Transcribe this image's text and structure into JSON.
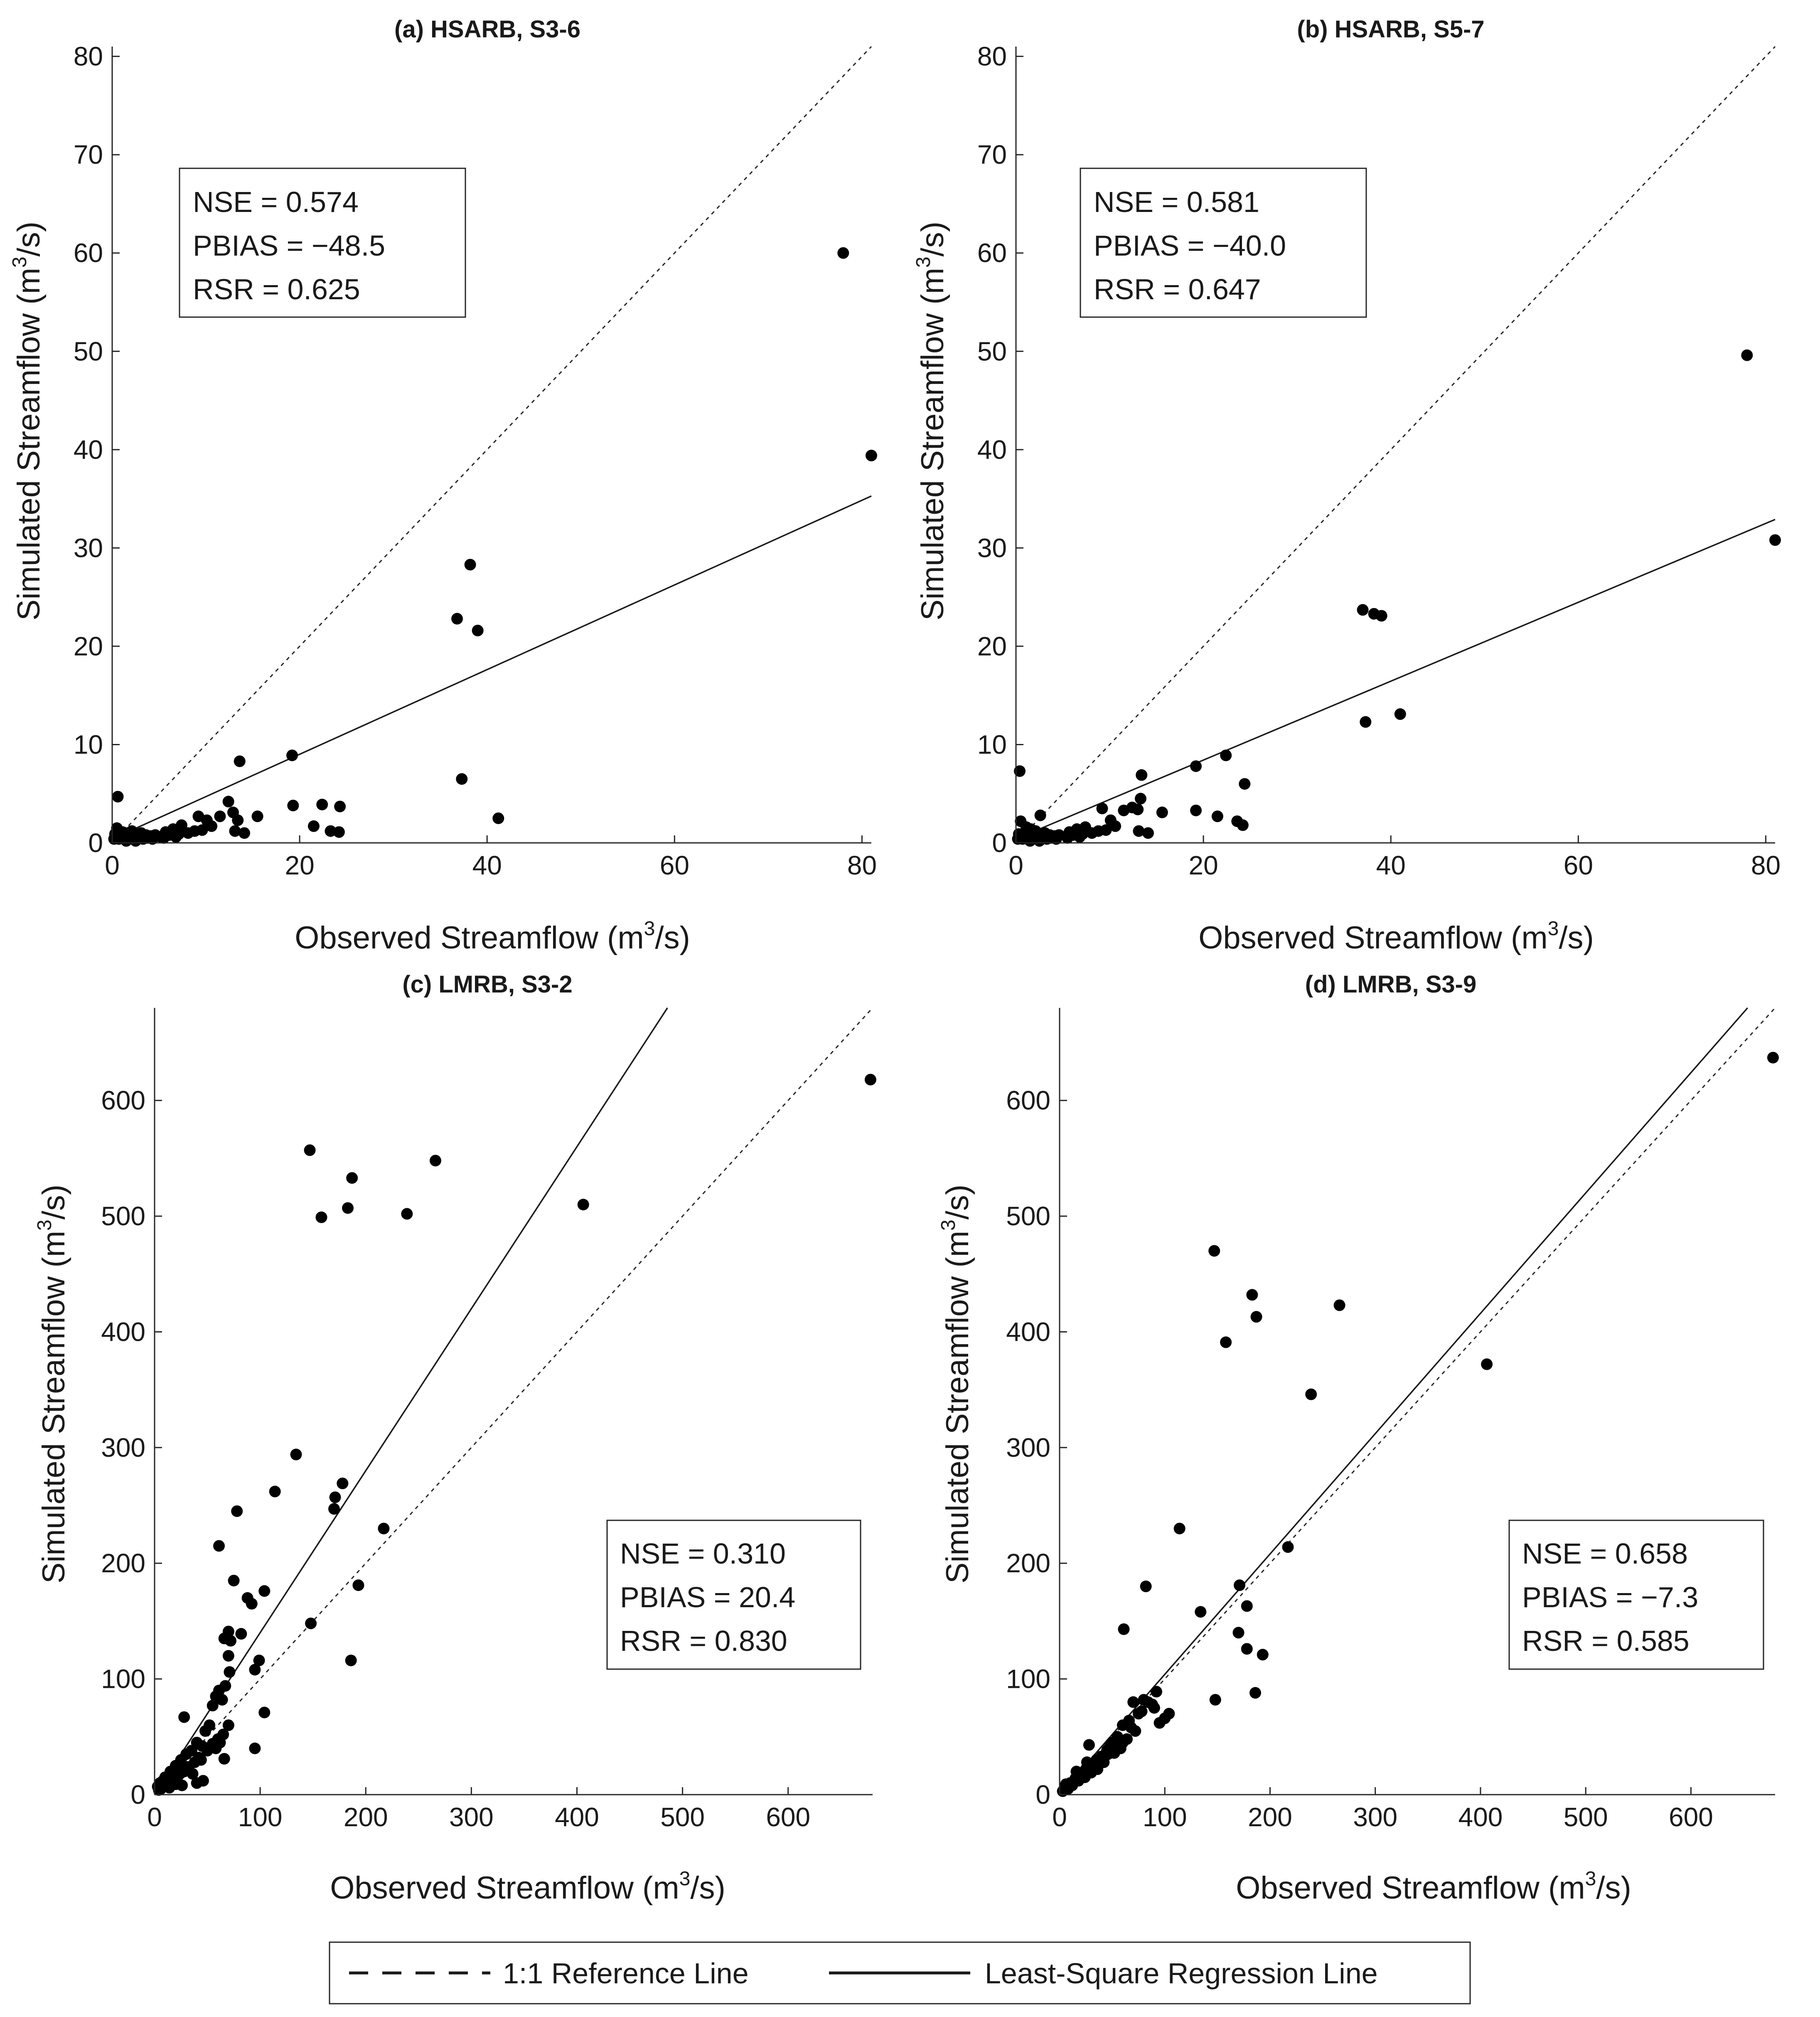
{
  "chart_data": [
    {
      "type": "scatter",
      "title": "(a) HSARB, S3-6",
      "xlabel": "Observed Streamflow (m",
      "ylabel": "Simulated Streamflow (m",
      "unit_exponent": "3",
      "unit_suffix": "/s)",
      "xlim": [
        0,
        81
      ],
      "ylim": [
        0,
        81
      ],
      "xticks": [
        0,
        20,
        40,
        60,
        80
      ],
      "yticks": [
        0,
        10,
        20,
        30,
        40,
        50,
        60,
        70,
        80
      ],
      "stats": {
        "nse": "NSE = 0.574",
        "pbias": "PBIAS = −48.5",
        "rsr": "RSR = 0.625"
      },
      "stats_position": "top-left",
      "reference_line": {
        "slope": 1,
        "intercept": 0
      },
      "regression_line": {
        "slope": 0.4306,
        "intercept": 0.4
      },
      "points": [
        [
          78,
          60
        ],
        [
          81,
          39.4
        ],
        [
          38.2,
          28.3
        ],
        [
          36.8,
          22.8
        ],
        [
          39,
          21.6
        ],
        [
          37.3,
          6.5
        ],
        [
          41.2,
          2.5
        ],
        [
          13.6,
          8.3
        ],
        [
          19.2,
          8.9
        ],
        [
          19.3,
          3.8
        ],
        [
          22.4,
          3.9
        ],
        [
          24.3,
          3.7
        ],
        [
          21.5,
          1.7
        ],
        [
          23.3,
          1.2
        ],
        [
          24.2,
          1.1
        ],
        [
          12.4,
          4.2
        ],
        [
          12.9,
          3.1
        ],
        [
          13.4,
          2.3
        ],
        [
          15.5,
          2.7
        ],
        [
          11.5,
          2.7
        ],
        [
          10.1,
          2.3
        ],
        [
          9.2,
          2.7
        ],
        [
          8.8,
          1.2
        ],
        [
          13.1,
          1.2
        ],
        [
          14.1,
          1
        ],
        [
          7.4,
          1.8
        ],
        [
          6.5,
          1.4
        ],
        [
          5.7,
          1.1
        ],
        [
          5.2,
          0.6
        ],
        [
          0.6,
          4.7
        ],
        [
          0.5,
          1.5
        ],
        [
          1.1,
          1.1
        ],
        [
          1.6,
          1
        ],
        [
          2.1,
          1.2
        ],
        [
          2.6,
          0.9
        ],
        [
          3.1,
          1
        ],
        [
          3.6,
          0.8
        ],
        [
          4.1,
          0.7
        ],
        [
          4.6,
          0.8
        ],
        [
          6.1,
          0.8
        ],
        [
          7.1,
          0.9
        ],
        [
          8.1,
          1
        ],
        [
          9.6,
          1.3
        ],
        [
          10.6,
          1.7
        ],
        [
          0.2,
          0.4
        ],
        [
          0.4,
          0.6
        ],
        [
          0.7,
          0.4
        ],
        [
          0.9,
          0.7
        ],
        [
          1.3,
          0.5
        ],
        [
          1.8,
          0.4
        ],
        [
          2.3,
          0.6
        ],
        [
          2.8,
          0.5
        ],
        [
          3.3,
          0.4
        ],
        [
          3.8,
          0.5
        ],
        [
          4.3,
          0.4
        ],
        [
          5.5,
          0.5
        ],
        [
          6.8,
          0.6
        ],
        [
          0.3,
          0.9
        ],
        [
          1.5,
          0.2
        ],
        [
          2.5,
          0.2
        ]
      ]
    },
    {
      "type": "scatter",
      "title": "(b) HSARB, S5-7",
      "xlabel": "Observed Streamflow (m",
      "ylabel": "Simulated Streamflow (m",
      "unit_exponent": "3",
      "unit_suffix": "/s)",
      "xlim": [
        0,
        81
      ],
      "ylim": [
        0,
        81
      ],
      "xticks": [
        0,
        20,
        40,
        60,
        80
      ],
      "yticks": [
        0,
        10,
        20,
        30,
        40,
        50,
        60,
        70,
        80
      ],
      "stats": {
        "nse": "NSE = 0.581",
        "pbias": "PBIAS = −40.0",
        "rsr": "RSR = 0.647"
      },
      "stats_position": "top-left",
      "reference_line": {
        "slope": 1,
        "intercept": 0
      },
      "regression_line": {
        "slope": 0.4012,
        "intercept": 0.4
      },
      "points": [
        [
          78,
          49.6
        ],
        [
          81,
          30.8
        ],
        [
          37,
          23.7
        ],
        [
          38.2,
          23.3
        ],
        [
          39,
          23.1
        ],
        [
          37.3,
          12.3
        ],
        [
          41,
          13.1
        ],
        [
          19.2,
          7.8
        ],
        [
          22.4,
          8.9
        ],
        [
          24.4,
          6
        ],
        [
          13.4,
          6.9
        ],
        [
          19.2,
          3.3
        ],
        [
          21.5,
          2.7
        ],
        [
          23.6,
          2.2
        ],
        [
          24.2,
          1.8
        ],
        [
          12.4,
          3.6
        ],
        [
          13.3,
          4.5
        ],
        [
          13,
          3.4
        ],
        [
          15.6,
          3.1
        ],
        [
          11.5,
          3.3
        ],
        [
          10.1,
          2.3
        ],
        [
          9.2,
          3.5
        ],
        [
          13.1,
          1.2
        ],
        [
          14.1,
          1
        ],
        [
          8.8,
          1.2
        ],
        [
          7.4,
          1.6
        ],
        [
          6.5,
          1.4
        ],
        [
          5.7,
          1.1
        ],
        [
          0.4,
          7.3
        ],
        [
          2.6,
          2.8
        ],
        [
          0.5,
          2.2
        ],
        [
          1.1,
          1.6
        ],
        [
          1.6,
          1.4
        ],
        [
          2.1,
          1.2
        ],
        [
          3.1,
          1
        ],
        [
          3.6,
          0.8
        ],
        [
          4.1,
          0.7
        ],
        [
          4.6,
          0.8
        ],
        [
          6.1,
          0.8
        ],
        [
          7.1,
          0.9
        ],
        [
          8.1,
          1
        ],
        [
          9.6,
          1.3
        ],
        [
          10.6,
          1.7
        ],
        [
          0.2,
          0.4
        ],
        [
          0.4,
          0.6
        ],
        [
          0.7,
          0.4
        ],
        [
          0.9,
          0.7
        ],
        [
          1.3,
          0.5
        ],
        [
          1.8,
          0.4
        ],
        [
          2.3,
          0.6
        ],
        [
          2.8,
          0.5
        ],
        [
          3.3,
          0.4
        ],
        [
          3.8,
          0.5
        ],
        [
          4.3,
          0.4
        ],
        [
          5.5,
          0.5
        ],
        [
          6.8,
          0.6
        ],
        [
          0.3,
          0.9
        ],
        [
          1.5,
          0.2
        ],
        [
          2.5,
          0.2
        ]
      ]
    },
    {
      "type": "scatter",
      "title": "(c) LMRB, S3-2",
      "xlabel": "Observed Streamflow (m",
      "ylabel": "Simulated Streamflow (m",
      "unit_exponent": "3",
      "unit_suffix": "/s)",
      "xlim": [
        0,
        680
      ],
      "ylim": [
        0,
        680
      ],
      "xticks": [
        0,
        100,
        200,
        300,
        400,
        500,
        600
      ],
      "yticks": [
        0,
        100,
        200,
        300,
        400,
        500,
        600
      ],
      "stats": {
        "nse": "NSE = 0.310",
        "pbias": "PBIAS = 20.4",
        "rsr": "RSR = 0.830"
      },
      "stats_position": "bottom-right",
      "reference_line": {
        "slope": 1,
        "intercept": 0
      },
      "regression_line": {
        "slope": 1.4,
        "intercept": 0
      },
      "points": [
        [
          678,
          618
        ],
        [
          406,
          510
        ],
        [
          147,
          557
        ],
        [
          266,
          548
        ],
        [
          187,
          533
        ],
        [
          183,
          507
        ],
        [
          158,
          499
        ],
        [
          239,
          502
        ],
        [
          134,
          294
        ],
        [
          178,
          269
        ],
        [
          171,
          257
        ],
        [
          170,
          247
        ],
        [
          217,
          230
        ],
        [
          114,
          262
        ],
        [
          78,
          245
        ],
        [
          193,
          181
        ],
        [
          186,
          116
        ],
        [
          148,
          148
        ],
        [
          61,
          215
        ],
        [
          75,
          185
        ],
        [
          88,
          170
        ],
        [
          92,
          165
        ],
        [
          104,
          176
        ],
        [
          99,
          116
        ],
        [
          95,
          108
        ],
        [
          70,
          141
        ],
        [
          66,
          135
        ],
        [
          72,
          133
        ],
        [
          82,
          139
        ],
        [
          70,
          120
        ],
        [
          71,
          106
        ],
        [
          67,
          94
        ],
        [
          61,
          90
        ],
        [
          58,
          85
        ],
        [
          64,
          82
        ],
        [
          55,
          77
        ],
        [
          104,
          71
        ],
        [
          95,
          40
        ],
        [
          66,
          31
        ],
        [
          28,
          67
        ],
        [
          52,
          60
        ],
        [
          48,
          55
        ],
        [
          40,
          45
        ],
        [
          45,
          42
        ],
        [
          35,
          38
        ],
        [
          30,
          35
        ],
        [
          25,
          30
        ],
        [
          20,
          25
        ],
        [
          15,
          20
        ],
        [
          10,
          15
        ],
        [
          5,
          10
        ],
        [
          3,
          7
        ],
        [
          8,
          12
        ],
        [
          12,
          10
        ],
        [
          18,
          14
        ],
        [
          22,
          16
        ],
        [
          28,
          20
        ],
        [
          32,
          24
        ],
        [
          38,
          28
        ],
        [
          42,
          32
        ],
        [
          50,
          38
        ],
        [
          55,
          44
        ],
        [
          60,
          48
        ],
        [
          65,
          52
        ],
        [
          70,
          60
        ],
        [
          46,
          12
        ],
        [
          40,
          10
        ],
        [
          36,
          18
        ],
        [
          26,
          8
        ],
        [
          6,
          5
        ],
        [
          14,
          6
        ],
        [
          20,
          9
        ],
        [
          9,
          8
        ],
        [
          4,
          4
        ],
        [
          16,
          13
        ],
        [
          24,
          18
        ],
        [
          30,
          22
        ],
        [
          44,
          30
        ],
        [
          58,
          40
        ],
        [
          62,
          45
        ]
      ]
    },
    {
      "type": "scatter",
      "title": "(d) LMRB, S3-9",
      "xlabel": "Observed Streamflow (m",
      "ylabel": "Simulated Streamflow (m",
      "unit_exponent": "3",
      "unit_suffix": "/s)",
      "xlim": [
        0,
        680
      ],
      "ylim": [
        0,
        680
      ],
      "xticks": [
        0,
        100,
        200,
        300,
        400,
        500,
        600
      ],
      "yticks": [
        0,
        100,
        200,
        300,
        400,
        500,
        600
      ],
      "stats": {
        "nse": "NSE = 0.658",
        "pbias": "PBIAS = −7.3",
        "rsr": "RSR = 0.585"
      },
      "stats_position": "bottom-right",
      "reference_line": {
        "slope": 1,
        "intercept": 0
      },
      "regression_line": {
        "slope": 1.04,
        "intercept": 0
      },
      "points": [
        [
          678,
          637
        ],
        [
          406,
          372
        ],
        [
          147,
          470
        ],
        [
          183,
          432
        ],
        [
          187,
          413
        ],
        [
          158,
          391
        ],
        [
          266,
          423
        ],
        [
          239,
          346
        ],
        [
          114,
          230
        ],
        [
          217,
          214
        ],
        [
          171,
          181
        ],
        [
          178,
          163
        ],
        [
          134,
          158
        ],
        [
          170,
          140
        ],
        [
          178,
          126
        ],
        [
          193,
          121
        ],
        [
          82,
          180
        ],
        [
          61,
          143
        ],
        [
          148,
          82
        ],
        [
          186,
          88
        ],
        [
          92,
          89
        ],
        [
          88,
          78
        ],
        [
          80,
          82
        ],
        [
          70,
          80
        ],
        [
          75,
          70
        ],
        [
          66,
          64
        ],
        [
          60,
          60
        ],
        [
          55,
          50
        ],
        [
          50,
          45
        ],
        [
          45,
          38
        ],
        [
          40,
          33
        ],
        [
          35,
          30
        ],
        [
          30,
          25
        ],
        [
          25,
          22
        ],
        [
          20,
          18
        ],
        [
          15,
          14
        ],
        [
          10,
          10
        ],
        [
          5,
          6
        ],
        [
          3,
          3
        ],
        [
          28,
          43
        ],
        [
          104,
          70
        ],
        [
          95,
          62
        ],
        [
          100,
          66
        ],
        [
          68,
          58
        ],
        [
          60,
          45
        ],
        [
          52,
          36
        ],
        [
          42,
          28
        ],
        [
          36,
          22
        ],
        [
          30,
          19
        ],
        [
          24,
          15
        ],
        [
          18,
          12
        ],
        [
          12,
          8
        ],
        [
          8,
          5
        ],
        [
          6,
          9
        ],
        [
          14,
          11
        ],
        [
          22,
          17
        ],
        [
          32,
          24
        ],
        [
          38,
          31
        ],
        [
          46,
          35
        ],
        [
          58,
          40
        ],
        [
          64,
          48
        ],
        [
          72,
          55
        ],
        [
          78,
          72
        ],
        [
          84,
          80
        ],
        [
          90,
          75
        ],
        [
          48,
          42
        ],
        [
          26,
          28
        ],
        [
          16,
          20
        ]
      ]
    }
  ],
  "legend": {
    "reference_label": "1:1 Reference Line",
    "regression_label": "Least-Square Regression Line"
  }
}
